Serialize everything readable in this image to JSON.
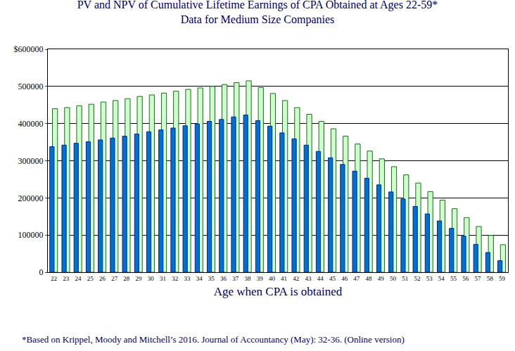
{
  "chart_data": {
    "type": "bar",
    "title": "PV and NPV of Cumulative Lifetime Earnings of CPA Obtained at Ages 22-59*",
    "subtitle": "Data for Medium Size Companies",
    "x_label": "Age when CPA is obtained",
    "annotations": [
      "*Based on Krippel, Moody and Mitchell’s 2016. Journal of Accountancy (May): 32-36. (Online version)"
    ],
    "categories": [
      22,
      23,
      24,
      25,
      26,
      27,
      28,
      29,
      30,
      31,
      32,
      33,
      34,
      35,
      36,
      37,
      38,
      39,
      40,
      41,
      42,
      43,
      44,
      45,
      46,
      47,
      48,
      49,
      50,
      51,
      52,
      53,
      54,
      55,
      56,
      57,
      58,
      59
    ],
    "series": [
      {
        "name": "PV",
        "color": "#ccffcc",
        "values": [
          440000,
          443000,
          448000,
          452000,
          458000,
          462000,
          467000,
          473000,
          477000,
          482000,
          487000,
          492000,
          496000,
          500000,
          505000,
          510000,
          515000,
          497000,
          481000,
          462000,
          443000,
          425000,
          406000,
          386000,
          366000,
          345000,
          326000,
          305000,
          284000,
          262000,
          240000,
          217000,
          194000,
          171000,
          147000,
          123000,
          99000,
          74000
        ]
      },
      {
        "name": "NPV",
        "color": "#0070d0",
        "values": [
          338000,
          342000,
          347000,
          351000,
          356000,
          361000,
          366000,
          372000,
          378000,
          383000,
          388000,
          394000,
          399000,
          406000,
          411000,
          418000,
          423000,
          408000,
          393000,
          375000,
          359000,
          342000,
          325000,
          308000,
          290000,
          272000,
          253000,
          235000,
          216000,
          197000,
          177000,
          157000,
          138000,
          118000,
          97000,
          75000,
          53000,
          31000
        ]
      }
    ],
    "ylim": [
      0,
      600000
    ],
    "yticks": [
      0,
      100000,
      200000,
      300000,
      400000,
      500000,
      {
        "value": 600000,
        "label": "$600000"
      }
    ],
    "grid": true
  }
}
